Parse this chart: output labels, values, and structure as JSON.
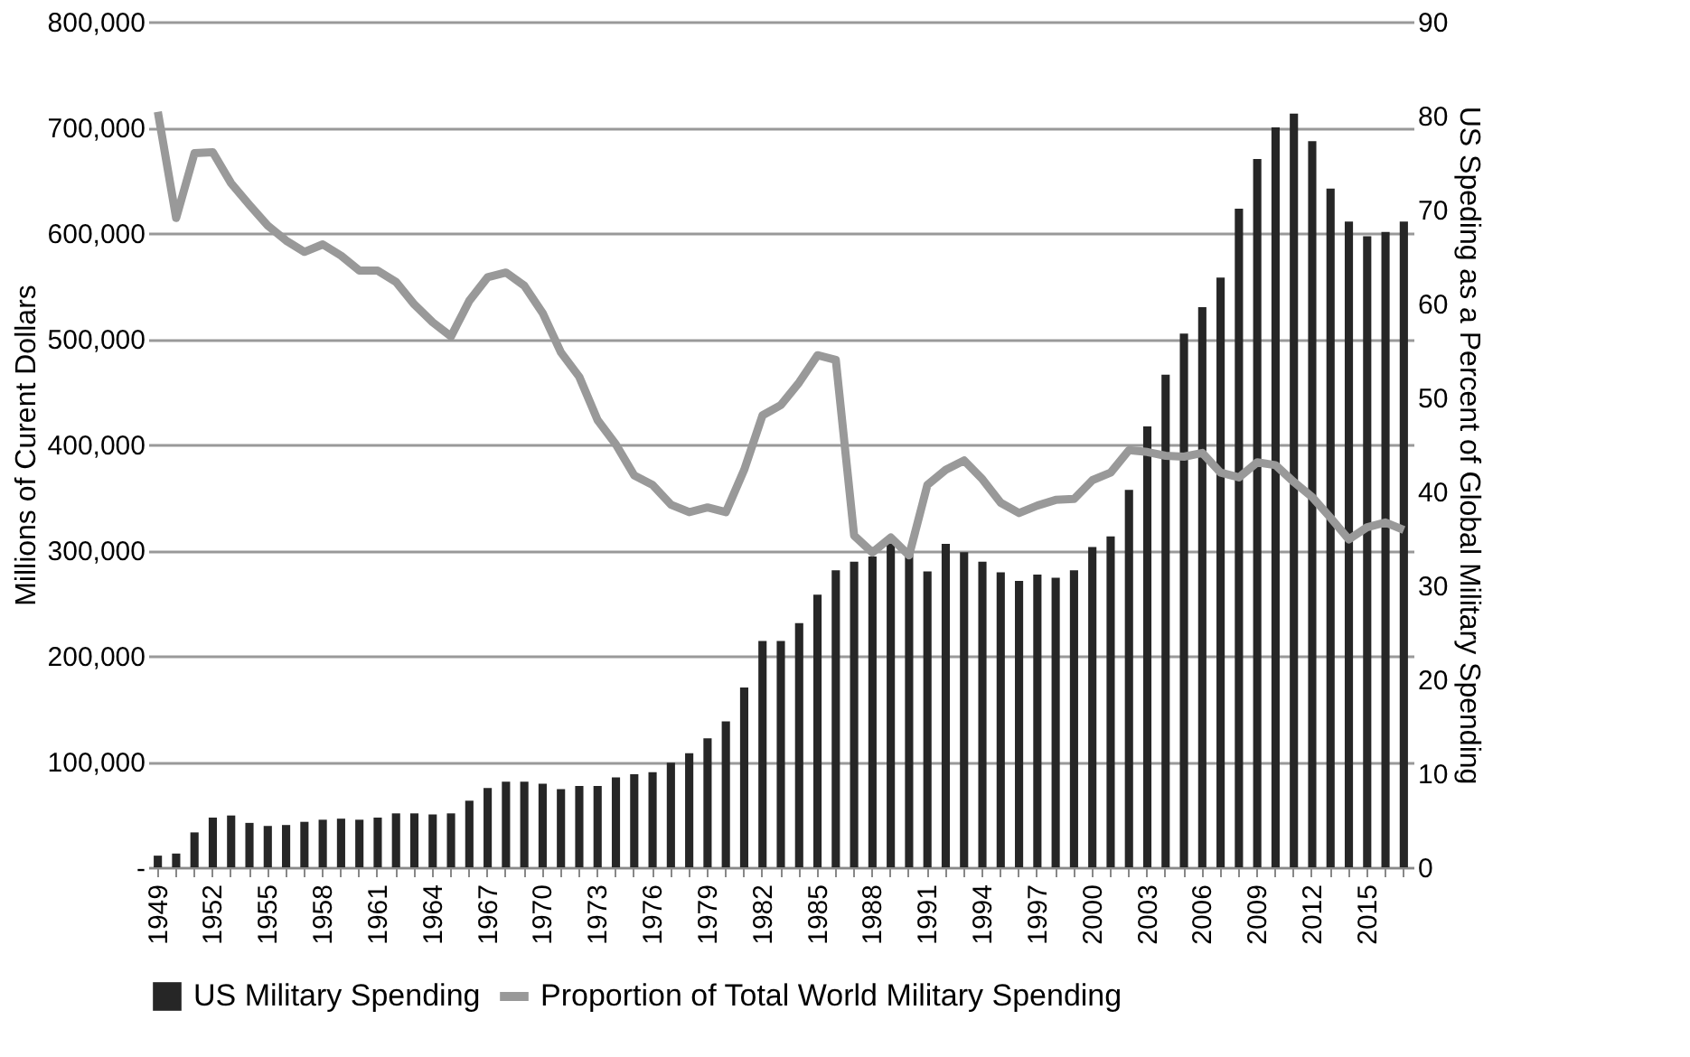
{
  "chart_data": {
    "type": "bar",
    "ylabel": "Millions of Curent Dollars",
    "y2label": "US Speding as a Percent of Global Military Spending",
    "categories": [
      "1949",
      null,
      null,
      "1952",
      null,
      null,
      "1955",
      null,
      null,
      "1958",
      null,
      null,
      "1961",
      null,
      null,
      "1964",
      null,
      null,
      "1967",
      null,
      null,
      "1970",
      null,
      null,
      "1973",
      null,
      null,
      "1976",
      null,
      null,
      "1979",
      null,
      null,
      "1982",
      null,
      null,
      "1985",
      null,
      null,
      "1988",
      null,
      null,
      "1991",
      null,
      null,
      "1994",
      null,
      null,
      "1997",
      null,
      null,
      "2000",
      null,
      null,
      "2003",
      null,
      null,
      "2006",
      null,
      null,
      "2009",
      null,
      null,
      "2012",
      null,
      null,
      "2015",
      null,
      null
    ],
    "series": [
      {
        "name": "US Military Spending",
        "color": "#262626",
        "values": [
          11000,
          13000,
          33000,
          47000,
          49000,
          42000,
          39000,
          40000,
          43000,
          45000,
          46000,
          45000,
          47000,
          51000,
          51000,
          50000,
          51000,
          63000,
          75000,
          81000,
          81000,
          79000,
          74000,
          77000,
          77000,
          85000,
          88000,
          90000,
          99000,
          108000,
          122000,
          138000,
          170000,
          214000,
          214000,
          231000,
          258000,
          281000,
          289000,
          294000,
          306000,
          299000,
          280000,
          306000,
          298000,
          289000,
          279000,
          271000,
          277000,
          274000,
          281000,
          303000,
          313000,
          357000,
          417000,
          466000,
          505000,
          530000,
          558000,
          623000,
          670000,
          700000,
          713000,
          687000,
          642000,
          611000,
          597000,
          601000,
          611000
        ]
      },
      {
        "name": "Proportion of Total World Military Spending",
        "color": "#999999",
        "type": "line",
        "axis": "y2",
        "values": [
          80.4,
          69.1,
          76.0,
          76.1,
          72.8,
          70.5,
          68.3,
          66.7,
          65.5,
          66.3,
          65.1,
          63.5,
          63.5,
          62.3,
          59.9,
          58.0,
          56.5,
          60.3,
          62.8,
          63.3,
          61.9,
          59.0,
          54.8,
          52.2,
          47.6,
          45.0,
          41.7,
          40.7,
          38.6,
          37.8,
          38.3,
          37.8,
          42.3,
          48.1,
          49.2,
          51.6,
          54.5,
          54.0,
          35.3,
          33.5,
          35.1,
          33.2,
          40.7,
          42.3,
          43.3,
          41.3,
          38.8,
          37.7,
          38.5,
          39.1,
          39.2,
          41.2,
          42.0,
          44.4,
          44.2,
          43.8,
          43.7,
          44.1,
          42.0,
          41.5,
          43.1,
          42.8,
          41.0,
          39.4,
          37.2,
          34.9,
          36.2,
          36.7,
          35.9
        ]
      }
    ],
    "ylim": [
      0,
      800000
    ],
    "yticks": [
      {
        "value": 0,
        "label": "-"
      },
      {
        "value": 100000,
        "label": "100,000"
      },
      {
        "value": 200000,
        "label": "200,000"
      },
      {
        "value": 300000,
        "label": "300,000"
      },
      {
        "value": 400000,
        "label": "400,000"
      },
      {
        "value": 500000,
        "label": "500,000"
      },
      {
        "value": 600000,
        "label": "600,000"
      },
      {
        "value": 700000,
        "label": "700,000"
      },
      {
        "value": 800000,
        "label": "800,000"
      }
    ],
    "y2lim": [
      0,
      90
    ],
    "y2ticks": [
      0,
      10,
      20,
      30,
      40,
      50,
      60,
      70,
      80,
      90
    ],
    "grid": "y",
    "legend": "bottom",
    "line_style": "solid",
    "marker": "none"
  }
}
